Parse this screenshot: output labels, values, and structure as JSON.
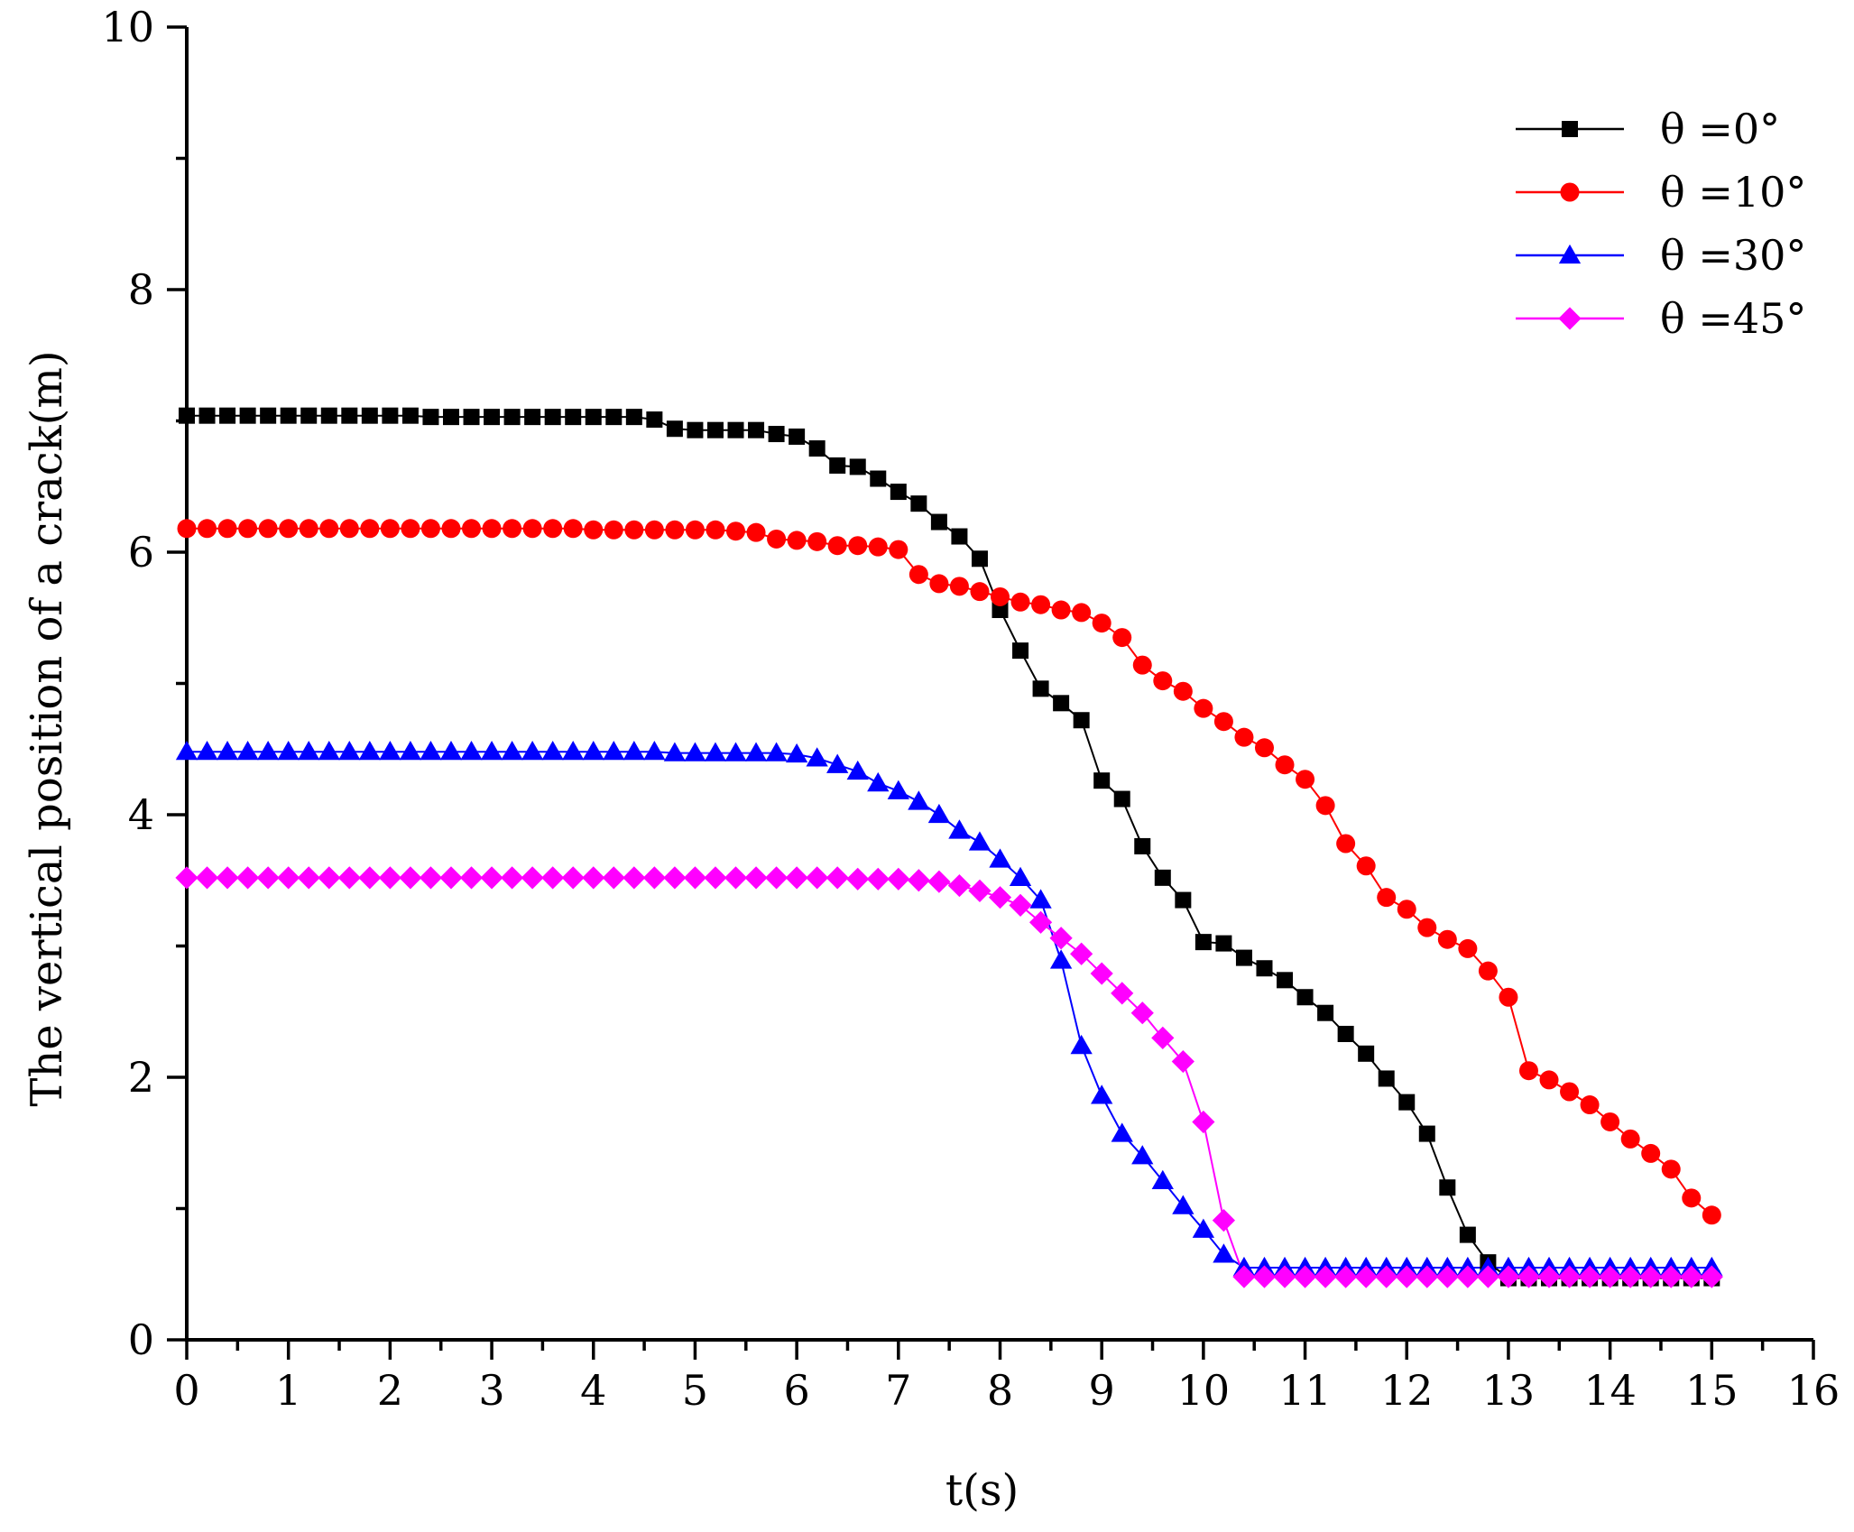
{
  "chart_data": {
    "type": "line",
    "title": "",
    "xlabel": "t(s)",
    "ylabel": "The vertical position of a crack(m)",
    "xlim": [
      0,
      16
    ],
    "ylim": [
      0,
      10
    ],
    "x_ticks": [
      "0",
      "1",
      "2",
      "3",
      "4",
      "5",
      "6",
      "7",
      "8",
      "9",
      "10",
      "11",
      "12",
      "13",
      "14",
      "15",
      "16"
    ],
    "y_ticks": [
      "0",
      "2",
      "4",
      "6",
      "8",
      "10"
    ],
    "legend_position": "top-right",
    "grid": false,
    "series": [
      {
        "name": "θ =0°",
        "color": "#000000",
        "marker": "square",
        "x": [
          0,
          0.2,
          0.4,
          0.6,
          0.8,
          1.0,
          1.2,
          1.4,
          1.6,
          1.8,
          2.0,
          2.2,
          2.4,
          2.6,
          2.8,
          3.0,
          3.2,
          3.4,
          3.6,
          3.8,
          4.0,
          4.2,
          4.4,
          4.6,
          4.8,
          5.0,
          5.2,
          5.4,
          5.6,
          5.8,
          6.0,
          6.2,
          6.4,
          6.6,
          6.8,
          7.0,
          7.2,
          7.4,
          7.6,
          7.8,
          8.0,
          8.2,
          8.4,
          8.6,
          8.8,
          9.0,
          9.2,
          9.4,
          9.6,
          9.8,
          10.0,
          10.2,
          10.4,
          10.6,
          10.8,
          11.0,
          11.2,
          11.4,
          11.6,
          11.8,
          12.0,
          12.2,
          12.4,
          12.6,
          12.8,
          13.0,
          13.2,
          13.4,
          13.6,
          13.8,
          14.0,
          14.2,
          14.4,
          14.6,
          14.8,
          15.0
        ],
        "y": [
          7.04,
          7.04,
          7.04,
          7.04,
          7.04,
          7.04,
          7.04,
          7.04,
          7.04,
          7.04,
          7.04,
          7.04,
          7.03,
          7.03,
          7.03,
          7.03,
          7.03,
          7.03,
          7.03,
          7.03,
          7.03,
          7.03,
          7.03,
          7.01,
          6.94,
          6.93,
          6.93,
          6.93,
          6.93,
          6.9,
          6.88,
          6.79,
          6.66,
          6.65,
          6.56,
          6.46,
          6.37,
          6.23,
          6.12,
          5.95,
          5.56,
          5.25,
          4.96,
          4.85,
          4.72,
          4.26,
          4.12,
          3.76,
          3.52,
          3.35,
          3.03,
          3.02,
          2.91,
          2.83,
          2.74,
          2.61,
          2.49,
          2.33,
          2.18,
          1.99,
          1.81,
          1.57,
          1.16,
          0.8,
          0.59,
          0.47,
          0.47,
          0.47,
          0.47,
          0.47,
          0.47,
          0.47,
          0.47,
          0.47,
          0.47,
          0.47
        ]
      },
      {
        "name": "θ =10°",
        "color": "#ff0000",
        "marker": "circle",
        "x": [
          0,
          0.2,
          0.4,
          0.6,
          0.8,
          1.0,
          1.2,
          1.4,
          1.6,
          1.8,
          2.0,
          2.2,
          2.4,
          2.6,
          2.8,
          3.0,
          3.2,
          3.4,
          3.6,
          3.8,
          4.0,
          4.2,
          4.4,
          4.6,
          4.8,
          5.0,
          5.2,
          5.4,
          5.6,
          5.8,
          6.0,
          6.2,
          6.4,
          6.6,
          6.8,
          7.0,
          7.2,
          7.4,
          7.6,
          7.8,
          8.0,
          8.2,
          8.4,
          8.6,
          8.8,
          9.0,
          9.2,
          9.4,
          9.6,
          9.8,
          10.0,
          10.2,
          10.4,
          10.6,
          10.8,
          11.0,
          11.2,
          11.4,
          11.6,
          11.8,
          12.0,
          12.2,
          12.4,
          12.6,
          12.8,
          13.0,
          13.2,
          13.4,
          13.6,
          13.8,
          14.0,
          14.2,
          14.4,
          14.6,
          14.8,
          15.0
        ],
        "y": [
          6.18,
          6.18,
          6.18,
          6.18,
          6.18,
          6.18,
          6.18,
          6.18,
          6.18,
          6.18,
          6.18,
          6.18,
          6.18,
          6.18,
          6.18,
          6.18,
          6.18,
          6.18,
          6.18,
          6.18,
          6.17,
          6.17,
          6.17,
          6.17,
          6.17,
          6.17,
          6.17,
          6.16,
          6.15,
          6.1,
          6.09,
          6.08,
          6.05,
          6.05,
          6.04,
          6.02,
          5.83,
          5.76,
          5.74,
          5.7,
          5.66,
          5.62,
          5.6,
          5.56,
          5.54,
          5.46,
          5.35,
          5.14,
          5.02,
          4.94,
          4.81,
          4.71,
          4.59,
          4.51,
          4.38,
          4.27,
          4.07,
          3.78,
          3.61,
          3.37,
          3.28,
          3.14,
          3.05,
          2.98,
          2.81,
          2.61,
          2.05,
          1.98,
          1.89,
          1.79,
          1.66,
          1.53,
          1.42,
          1.3,
          1.08,
          0.95
        ]
      },
      {
        "name": "θ =30°",
        "color": "#0000ff",
        "marker": "triangle",
        "x": [
          0,
          0.2,
          0.4,
          0.6,
          0.8,
          1.0,
          1.2,
          1.4,
          1.6,
          1.8,
          2.0,
          2.2,
          2.4,
          2.6,
          2.8,
          3.0,
          3.2,
          3.4,
          3.6,
          3.8,
          4.0,
          4.2,
          4.4,
          4.6,
          4.8,
          5.0,
          5.2,
          5.4,
          5.6,
          5.8,
          6.0,
          6.2,
          6.4,
          6.6,
          6.8,
          7.0,
          7.2,
          7.4,
          7.6,
          7.8,
          8.0,
          8.2,
          8.4,
          8.6,
          8.8,
          9.0,
          9.2,
          9.4,
          9.6,
          9.8,
          10.0,
          10.2,
          10.4,
          10.6,
          10.8,
          11.0,
          11.2,
          11.4,
          11.6,
          11.8,
          12.0,
          12.2,
          12.4,
          12.6,
          12.8,
          13.0,
          13.2,
          13.4,
          13.6,
          13.8,
          14.0,
          14.2,
          14.4,
          14.6,
          14.8,
          15.0
        ],
        "y": [
          4.48,
          4.48,
          4.48,
          4.48,
          4.48,
          4.48,
          4.48,
          4.48,
          4.48,
          4.48,
          4.48,
          4.48,
          4.48,
          4.48,
          4.48,
          4.48,
          4.48,
          4.48,
          4.48,
          4.48,
          4.48,
          4.48,
          4.48,
          4.48,
          4.47,
          4.47,
          4.47,
          4.47,
          4.47,
          4.47,
          4.46,
          4.43,
          4.38,
          4.33,
          4.24,
          4.18,
          4.1,
          4.0,
          3.88,
          3.79,
          3.66,
          3.52,
          3.35,
          2.89,
          2.24,
          1.86,
          1.57,
          1.4,
          1.21,
          1.02,
          0.84,
          0.65,
          0.55,
          0.55,
          0.55,
          0.55,
          0.55,
          0.55,
          0.55,
          0.55,
          0.55,
          0.55,
          0.55,
          0.55,
          0.55,
          0.55,
          0.55,
          0.55,
          0.55,
          0.55,
          0.55,
          0.55,
          0.55,
          0.55,
          0.55,
          0.55
        ]
      },
      {
        "name": "θ =45°",
        "color": "#ff00ff",
        "marker": "diamond",
        "x": [
          0,
          0.2,
          0.4,
          0.6,
          0.8,
          1.0,
          1.2,
          1.4,
          1.6,
          1.8,
          2.0,
          2.2,
          2.4,
          2.6,
          2.8,
          3.0,
          3.2,
          3.4,
          3.6,
          3.8,
          4.0,
          4.2,
          4.4,
          4.6,
          4.8,
          5.0,
          5.2,
          5.4,
          5.6,
          5.8,
          6.0,
          6.2,
          6.4,
          6.6,
          6.8,
          7.0,
          7.2,
          7.4,
          7.6,
          7.8,
          8.0,
          8.2,
          8.4,
          8.6,
          8.8,
          9.0,
          9.2,
          9.4,
          9.6,
          9.8,
          10.0,
          10.2,
          10.4,
          10.6,
          10.8,
          11.0,
          11.2,
          11.4,
          11.6,
          11.8,
          12.0,
          12.2,
          12.4,
          12.6,
          12.8,
          13.0,
          13.2,
          13.4,
          13.6,
          13.8,
          14.0,
          14.2,
          14.4,
          14.6,
          14.8,
          15.0
        ],
        "y": [
          3.52,
          3.52,
          3.52,
          3.52,
          3.52,
          3.52,
          3.52,
          3.52,
          3.52,
          3.52,
          3.52,
          3.52,
          3.52,
          3.52,
          3.52,
          3.52,
          3.52,
          3.52,
          3.52,
          3.52,
          3.52,
          3.52,
          3.52,
          3.52,
          3.52,
          3.52,
          3.52,
          3.52,
          3.52,
          3.52,
          3.52,
          3.52,
          3.52,
          3.51,
          3.51,
          3.51,
          3.5,
          3.49,
          3.46,
          3.42,
          3.37,
          3.31,
          3.18,
          3.06,
          2.94,
          2.79,
          2.64,
          2.49,
          2.3,
          2.12,
          1.66,
          0.91,
          0.48,
          0.48,
          0.48,
          0.48,
          0.48,
          0.48,
          0.48,
          0.48,
          0.48,
          0.48,
          0.48,
          0.48,
          0.48,
          0.48,
          0.48,
          0.48,
          0.48,
          0.48,
          0.48,
          0.48,
          0.48,
          0.48,
          0.48,
          0.48
        ]
      }
    ]
  }
}
